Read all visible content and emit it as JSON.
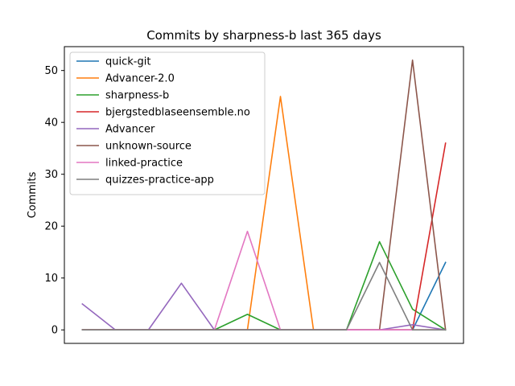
{
  "chart_data": {
    "type": "line",
    "title": "Commits by sharpness-b last 365 days",
    "xlabel": "",
    "ylabel": "Commits",
    "x": [
      0,
      1,
      2,
      3,
      4,
      5,
      6,
      7,
      8,
      9,
      10,
      11
    ],
    "ylim": [
      -2.6,
      54.6
    ],
    "yticks": [
      0,
      10,
      20,
      30,
      40,
      50
    ],
    "legend_position": "upper-left",
    "series": [
      {
        "name": "quick-git",
        "color": "#1f77b4",
        "values": [
          0,
          0,
          0,
          0,
          0,
          0,
          0,
          0,
          0,
          0,
          0,
          13
        ]
      },
      {
        "name": "Advancer-2.0",
        "color": "#ff7f0e",
        "values": [
          0,
          0,
          0,
          0,
          0,
          0,
          45,
          0,
          0,
          0,
          0,
          0
        ]
      },
      {
        "name": "sharpness-b",
        "color": "#2ca02c",
        "values": [
          0,
          0,
          0,
          0,
          0,
          3,
          0,
          0,
          0,
          17,
          4,
          0
        ]
      },
      {
        "name": "bjergstedblaseensemble.no",
        "color": "#d62728",
        "values": [
          0,
          0,
          0,
          0,
          0,
          0,
          0,
          0,
          0,
          0,
          0,
          36
        ]
      },
      {
        "name": "Advancer",
        "color": "#9467bd",
        "values": [
          5,
          0,
          0,
          9,
          0,
          0,
          0,
          0,
          0,
          0,
          1,
          0
        ]
      },
      {
        "name": "unknown-source",
        "color": "#8c564b",
        "values": [
          0,
          0,
          0,
          0,
          0,
          0,
          0,
          0,
          0,
          0,
          52,
          0
        ]
      },
      {
        "name": "linked-practice",
        "color": "#e377c2",
        "values": [
          0,
          0,
          0,
          0,
          0,
          19,
          0,
          0,
          0,
          0,
          0,
          0
        ]
      },
      {
        "name": "quizzes-practice-app",
        "color": "#7f7f7f",
        "values": [
          0,
          0,
          0,
          0,
          0,
          0,
          0,
          0,
          0,
          13,
          0,
          0
        ]
      }
    ]
  }
}
